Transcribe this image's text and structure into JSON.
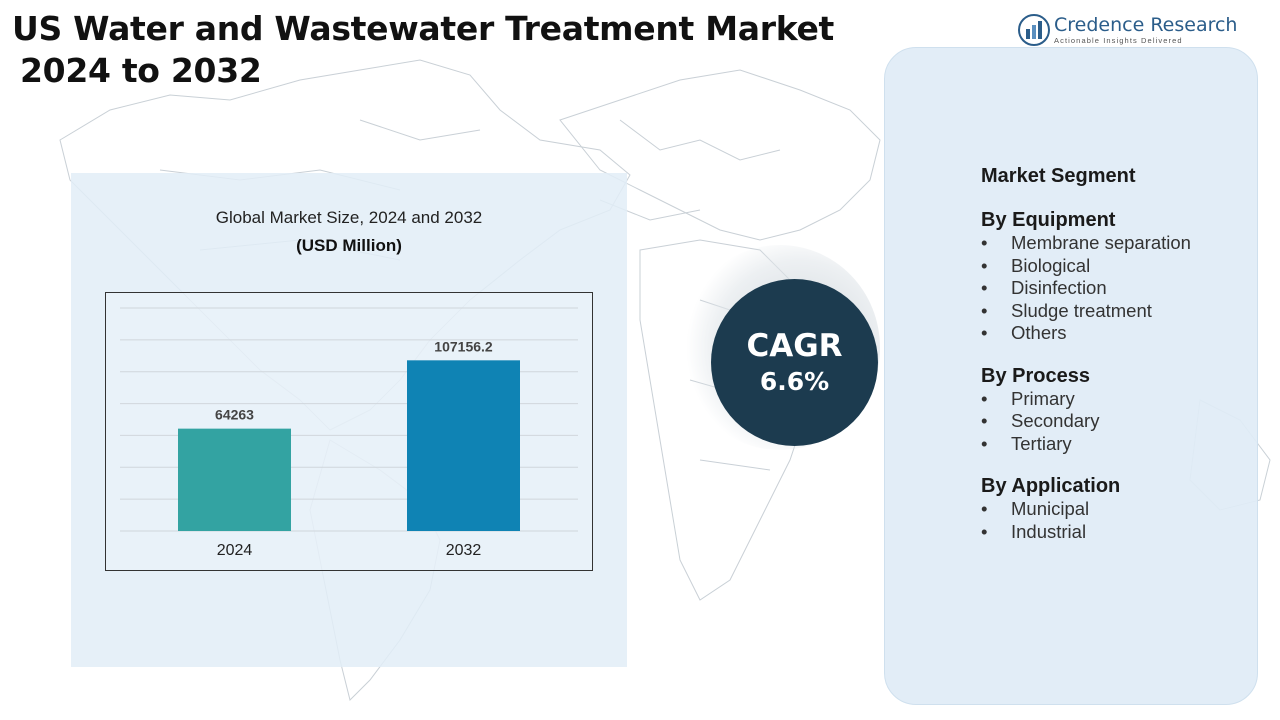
{
  "title": {
    "line1": "US Water and Wastewater Treatment Market",
    "line2": "2024 to 2032"
  },
  "brand": {
    "name": "Credence Research",
    "tagline": "Actionable Insights Delivered",
    "icon": "bar-chart-logo-icon"
  },
  "chart_data": {
    "type": "bar",
    "title": "Global Market Size, 2024 and 2032",
    "subtitle": "(USD Million)",
    "categories": [
      "2024",
      "2032"
    ],
    "values": [
      64263,
      107156.2
    ],
    "value_labels": [
      "64263",
      "107156.2"
    ],
    "colors": [
      "#33a3a2",
      "#0f83b4"
    ],
    "ylim": [
      0,
      140000
    ],
    "grid": true,
    "legend": "none"
  },
  "cagr": {
    "label": "CAGR",
    "value": "6.6%",
    "color": "#1c3b4f"
  },
  "segments": {
    "heading": "Market Segment",
    "groups": [
      {
        "title": "By Equipment",
        "items": [
          "Membrane separation",
          "Biological",
          "Disinfection",
          "Sludge treatment",
          "Others"
        ]
      },
      {
        "title": "By Process",
        "items": [
          "Primary",
          "Secondary",
          "Tertiary"
        ]
      },
      {
        "title": "By Application",
        "items": [
          "Municipal",
          "Industrial"
        ]
      }
    ]
  }
}
